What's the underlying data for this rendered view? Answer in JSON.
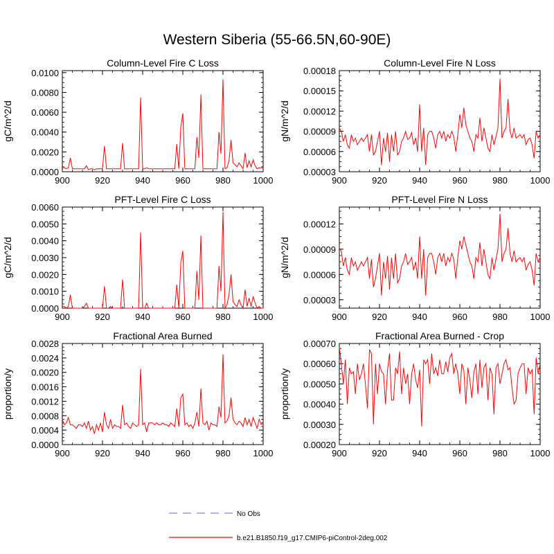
{
  "main_title": "Western Siberia (55-66.5N,60-90E)",
  "legend": {
    "items": [
      {
        "label": "No Obs",
        "color": "#9999dd",
        "style": "dashed"
      },
      {
        "label": "b.e21.B1850.f19_g17.CMIP6-piControl-2deg.002",
        "color": "#ff0000",
        "style": "solid"
      }
    ]
  },
  "colors": {
    "series": "#ff0000",
    "axis": "#000000"
  },
  "chart_data": [
    {
      "type": "line",
      "title": "Column-Level Fire C Loss",
      "ylabel": "gC/m^2/d",
      "xlabel": "",
      "xlim": [
        900,
        1000
      ],
      "ylim": [
        0,
        0.0102
      ],
      "xticks": [
        "900",
        "920",
        "940",
        "960",
        "980",
        "1000"
      ],
      "yticks": [
        "0.0000",
        "0.0020",
        "0.0040",
        "0.0060",
        "0.0080",
        "0.0100"
      ],
      "series": [
        {
          "color": "#ff0000",
          "x_start": 900,
          "x_step": 1,
          "values": [
            0.0004,
            0.0004,
            0.0003,
            0.0004,
            0.0014,
            0.0003,
            0.0003,
            0.0003,
            0.0003,
            0.0003,
            0.0003,
            0.0003,
            0.0006,
            0.0002,
            0.0003,
            0.0003,
            0.0002,
            0.0003,
            0.0003,
            0.0003,
            0.0003,
            0.0026,
            0.0003,
            0.0003,
            0.0003,
            0.0003,
            0.0003,
            0.0003,
            0.0003,
            0.0003,
            0.0029,
            0.0003,
            0.0003,
            0.0003,
            0.0003,
            0.0003,
            0.0003,
            0.0003,
            0.0003,
            0.0075,
            0.0003,
            0.0003,
            0.0004,
            0.0003,
            0.0003,
            0.0003,
            0.0003,
            0.0003,
            0.0003,
            0.0003,
            0.0003,
            0.0003,
            0.0003,
            0.0003,
            0.0003,
            0.0003,
            0.0003,
            0.0028,
            0.0003,
            0.0045,
            0.0059,
            0.0003,
            0.0003,
            0.0003,
            0.0003,
            0.0003,
            0.0003,
            0.0035,
            0.0014,
            0.0078,
            0.0003,
            0.0003,
            0.0003,
            0.0003,
            0.0003,
            0.0003,
            0.0003,
            0.0003,
            0.004,
            0.0018,
            0.0093,
            0.0003,
            0.0004,
            0.0011,
            0.0032,
            0.0009,
            0.0007,
            0.0005,
            0.0009,
            0.0006,
            0.0003,
            0.0019,
            0.0004,
            0.0011,
            0.0005,
            0.0012,
            0.0006,
            0.0003,
            0.0004,
            0.0004,
            0.0004
          ]
        }
      ]
    },
    {
      "type": "line",
      "title": "Column-Level Fire N Loss",
      "ylabel": "gN/m^2/d",
      "xlabel": "",
      "xlim": [
        900,
        1000
      ],
      "ylim": [
        3e-05,
        0.00018
      ],
      "xticks": [
        "900",
        "920",
        "940",
        "960",
        "980",
        "1000"
      ],
      "yticks": [
        "0.00003",
        "0.00006",
        "0.00009",
        "0.00012",
        "0.00015",
        "0.00018"
      ],
      "series": [
        {
          "color": "#ff0000",
          "x_start": 900,
          "x_step": 1,
          "values": [
            9.5e-05,
            9e-05,
            7.5e-05,
            8.5e-05,
            7e-05,
            6.5e-05,
            8.5e-05,
            7.5e-05,
            8e-05,
            7e-05,
            7.5e-05,
            8e-05,
            7.5e-05,
            8e-05,
            8.5e-05,
            6e-05,
            8.5e-05,
            5.5e-05,
            6e-05,
            7.5e-05,
            9e-05,
            4e-05,
            8e-05,
            6e-05,
            8.8e-05,
            4.5e-05,
            8.5e-05,
            6e-05,
            9e-05,
            5.5e-05,
            6e-05,
            7.5e-05,
            8e-05,
            9e-05,
            7.8e-05,
            8e-05,
            8.8e-05,
            7e-05,
            8e-05,
            6e-05,
            0.00013,
            6e-05,
            9.5e-05,
            4e-05,
            8.5e-05,
            9e-05,
            9e-05,
            8e-05,
            6.5e-05,
            8.5e-05,
            9e-05,
            8e-05,
            9e-05,
            7.5e-05,
            8.5e-05,
            8e-05,
            9e-05,
            8.2e-05,
            6e-05,
            8.5e-05,
            0.000115,
            9.5e-05,
            0.000125,
            0.0001,
            9e-05,
            8e-05,
            7.5e-05,
            6e-05,
            8.5e-05,
            8e-05,
            0.00011,
            7.5e-05,
            9.5e-05,
            8e-05,
            6.5e-05,
            6e-05,
            8.5e-05,
            7e-05,
            8.2e-05,
            9.5e-05,
            0.000168,
            8e-05,
            9e-05,
            9.5e-05,
            0.000138,
            9e-05,
            8e-05,
            9.5e-05,
            8e-05,
            8.2e-05,
            8.5e-05,
            8e-05,
            8.5e-05,
            7e-05,
            7.8e-05,
            8e-05,
            7e-05,
            5e-05,
            9e-05,
            8e-05,
            8.5e-05
          ]
        }
      ]
    },
    {
      "type": "line",
      "title": "PFT-Level Fire C Loss",
      "ylabel": "gC/m^2/d",
      "xlabel": "",
      "xlim": [
        900,
        1000
      ],
      "ylim": [
        0,
        0.006
      ],
      "xticks": [
        "900",
        "920",
        "940",
        "960",
        "980",
        "1000"
      ],
      "yticks": [
        "0.0000",
        "0.0010",
        "0.0020",
        "0.0030",
        "0.0040",
        "0.0050",
        "0.0060"
      ],
      "series": [
        {
          "color": "#ff0000",
          "x_start": 900,
          "x_step": 1,
          "values": [
            0.0001,
            0.0001,
            0.0,
            0.0001,
            0.0008,
            0.0,
            0.0,
            0.0,
            0.0,
            0.0,
            0.0,
            0.0001,
            0.0003,
            0.0,
            0.0,
            0.0,
            0.0,
            0.0,
            0.0,
            0.0,
            0.0,
            0.0013,
            0.0,
            0.0,
            0.0001,
            0.0,
            0.0,
            0.0,
            0.0,
            0.0,
            0.0017,
            0.0,
            0.0,
            0.0,
            0.0,
            0.0,
            0.0,
            0.0,
            0.0,
            0.0045,
            0.0,
            0.0,
            0.0003,
            0.0,
            0.0,
            0.0,
            0.0,
            0.0,
            0.0,
            0.0,
            0.0,
            0.0,
            0.0,
            0.0,
            0.0,
            0.0,
            0.0,
            0.0014,
            0.0,
            0.0027,
            0.0034,
            0.0,
            0.0,
            0.0,
            0.0,
            0.0,
            0.0,
            0.0022,
            0.0005,
            0.0043,
            0.0,
            0.0,
            0.0,
            0.0,
            0.0,
            0.0,
            0.0,
            0.0,
            0.0025,
            0.001,
            0.0057,
            0.0,
            0.0002,
            0.0008,
            0.002,
            0.0004,
            0.0002,
            0.0001,
            0.0005,
            0.0002,
            0.0,
            0.0011,
            0.0001,
            0.0006,
            0.0001,
            0.0007,
            0.0003,
            0.0,
            0.0001,
            0.0,
            0.0
          ]
        }
      ]
    },
    {
      "type": "line",
      "title": "PFT-Level Fire N Loss",
      "ylabel": "gN/m^2/d",
      "xlabel": "",
      "xlim": [
        900,
        1000
      ],
      "ylim": [
        2e-05,
        0.00014
      ],
      "xticks": [
        "900",
        "920",
        "940",
        "960",
        "980",
        "1000"
      ],
      "yticks": [
        "0.00003",
        "0.00006",
        "0.00009",
        "0.00012"
      ],
      "series": [
        {
          "color": "#ff0000",
          "x_start": 900,
          "x_step": 1,
          "values": [
            9e-05,
            8.8e-05,
            7e-05,
            8e-05,
            6.5e-05,
            6e-05,
            8e-05,
            7e-05,
            7.5e-05,
            6.5e-05,
            7e-05,
            7.5e-05,
            7e-05,
            7.5e-05,
            8e-05,
            5.5e-05,
            7.8e-05,
            4.5e-05,
            5.5e-05,
            7e-05,
            8.5e-05,
            3.5e-05,
            7.5e-05,
            5.5e-05,
            8.2e-05,
            4.2e-05,
            8e-05,
            5.5e-05,
            8.5e-05,
            5e-05,
            5.5e-05,
            7e-05,
            7.5e-05,
            8.5e-05,
            7.2e-05,
            7.5e-05,
            8e-05,
            6.5e-05,
            7.5e-05,
            5.5e-05,
            0.000105,
            5.5e-05,
            9e-05,
            3.5e-05,
            8e-05,
            8.5e-05,
            8.5e-05,
            7.5e-05,
            6e-05,
            8e-05,
            8.5e-05,
            7.5e-05,
            8.5e-05,
            7e-05,
            8e-05,
            7.5e-05,
            8.5e-05,
            7.8e-05,
            5.5e-05,
            8e-05,
            0.0001,
            9e-05,
            0.000105,
            9.5e-05,
            8.5e-05,
            7.5e-05,
            7e-05,
            5.5e-05,
            8e-05,
            7.5e-05,
            9.8e-05,
            7e-05,
            9e-05,
            7.5e-05,
            6e-05,
            5.5e-05,
            8e-05,
            6.5e-05,
            7.8e-05,
            9e-05,
            0.000132,
            7.5e-05,
            8.5e-05,
            9e-05,
            0.000115,
            8.5e-05,
            7.5e-05,
            8.8e-05,
            7.5e-05,
            7.8e-05,
            8e-05,
            7.5e-05,
            8e-05,
            6.5e-05,
            7.2e-05,
            7.5e-05,
            6.5e-05,
            4.7e-05,
            8.5e-05,
            7.5e-05,
            8e-05
          ]
        }
      ]
    },
    {
      "type": "line",
      "title": "Fractional Area Burned",
      "ylabel": "proportion/y",
      "xlabel": "",
      "xlim": [
        900,
        1000
      ],
      "ylim": [
        0,
        0.0028
      ],
      "xticks": [
        "900",
        "920",
        "940",
        "960",
        "980",
        "1000"
      ],
      "yticks": [
        "0.0000",
        "0.0004",
        "0.0008",
        "0.0012",
        "0.0016",
        "0.0020",
        "0.0024",
        "0.0028"
      ],
      "series": [
        {
          "color": "#ff0000",
          "x_start": 900,
          "x_step": 1,
          "values": [
            0.0007,
            0.00055,
            0.0006,
            0.00075,
            0.00055,
            0.00055,
            0.0005,
            0.00045,
            0.00055,
            0.00055,
            0.0005,
            0.0006,
            0.00045,
            0.00065,
            0.0004,
            0.0005,
            0.0003,
            0.00055,
            0.0004,
            0.0006,
            0.00035,
            0.0009,
            0.00055,
            0.00045,
            0.0007,
            0.00045,
            0.00055,
            0.0005,
            0.0005,
            0.00045,
            0.0011,
            0.00055,
            0.0006,
            0.0005,
            0.00045,
            0.0006,
            0.00055,
            0.0005,
            0.00055,
            0.0021,
            0.00055,
            0.0006,
            0.00035,
            0.0006,
            0.0006,
            0.0006,
            0.00055,
            0.0006,
            0.00055,
            0.00055,
            0.0006,
            0.00055,
            0.00055,
            0.0005,
            0.0006,
            0.00055,
            0.0005,
            0.001,
            0.0005,
            0.0013,
            0.0014,
            0.00055,
            0.0006,
            0.0005,
            0.00055,
            0.00045,
            0.0006,
            0.0009,
            0.0005,
            0.00155,
            0.0006,
            0.00055,
            0.00065,
            0.0004,
            0.0006,
            0.00055,
            0.00055,
            0.0005,
            0.00105,
            0.00075,
            0.0025,
            0.0006,
            0.00065,
            0.0008,
            0.0013,
            0.0007,
            0.0006,
            0.00055,
            0.00065,
            0.0006,
            0.0005,
            0.00075,
            0.00055,
            0.0007,
            0.0005,
            0.00075,
            0.0006,
            0.00045,
            0.0007,
            0.00055,
            0.0006
          ]
        }
      ]
    },
    {
      "type": "line",
      "title": "Fractional Area Burned - Crop",
      "ylabel": "proportion/y",
      "xlabel": "",
      "xlim": [
        900,
        1000
      ],
      "ylim": [
        0.0002,
        0.0007
      ],
      "xticks": [
        "900",
        "920",
        "940",
        "960",
        "980",
        "1000"
      ],
      "yticks": [
        "0.00020",
        "0.00030",
        "0.00040",
        "0.00050",
        "0.00060",
        "0.00070"
      ],
      "series": [
        {
          "color": "#ff0000",
          "x_start": 900,
          "x_step": 1,
          "values": [
            0.00068,
            0.0006,
            0.0005,
            0.00062,
            0.0004,
            0.00058,
            0.00055,
            0.00056,
            0.00045,
            0.0006,
            0.00052,
            0.00055,
            0.0006,
            0.0005,
            0.00038,
            0.00067,
            0.00065,
            0.0003,
            0.0006,
            0.00045,
            0.0006,
            0.00056,
            0.00055,
            0.0004,
            0.00057,
            0.00065,
            0.00042,
            0.00042,
            0.00058,
            0.00055,
            0.00066,
            0.00045,
            0.00058,
            0.0005,
            0.00055,
            0.0004,
            0.00055,
            0.0006,
            0.00052,
            0.00048,
            0.00057,
            0.00029,
            0.00062,
            0.0006,
            0.00062,
            0.0005,
            0.00065,
            0.00055,
            0.00058,
            0.00054,
            0.00062,
            0.00055,
            0.00055,
            0.00061,
            0.00056,
            0.00063,
            0.00065,
            0.00055,
            0.0006,
            0.00055,
            0.00045,
            0.0006,
            0.00057,
            0.0004,
            0.00058,
            0.00052,
            0.00043,
            0.00056,
            0.0006,
            0.00045,
            0.00062,
            0.00048,
            0.00058,
            0.0006,
            0.00042,
            0.00058,
            0.00055,
            0.00035,
            0.00058,
            0.0006,
            0.0005,
            0.00055,
            0.0006,
            0.00062,
            0.00057,
            0.00058,
            0.00048,
            0.0004,
            0.00042,
            0.00055,
            0.00058,
            0.0006,
            0.0006,
            0.00045,
            0.00058,
            0.00055,
            0.00057,
            0.00035,
            0.00063,
            0.00055,
            0.0006
          ]
        }
      ]
    }
  ]
}
